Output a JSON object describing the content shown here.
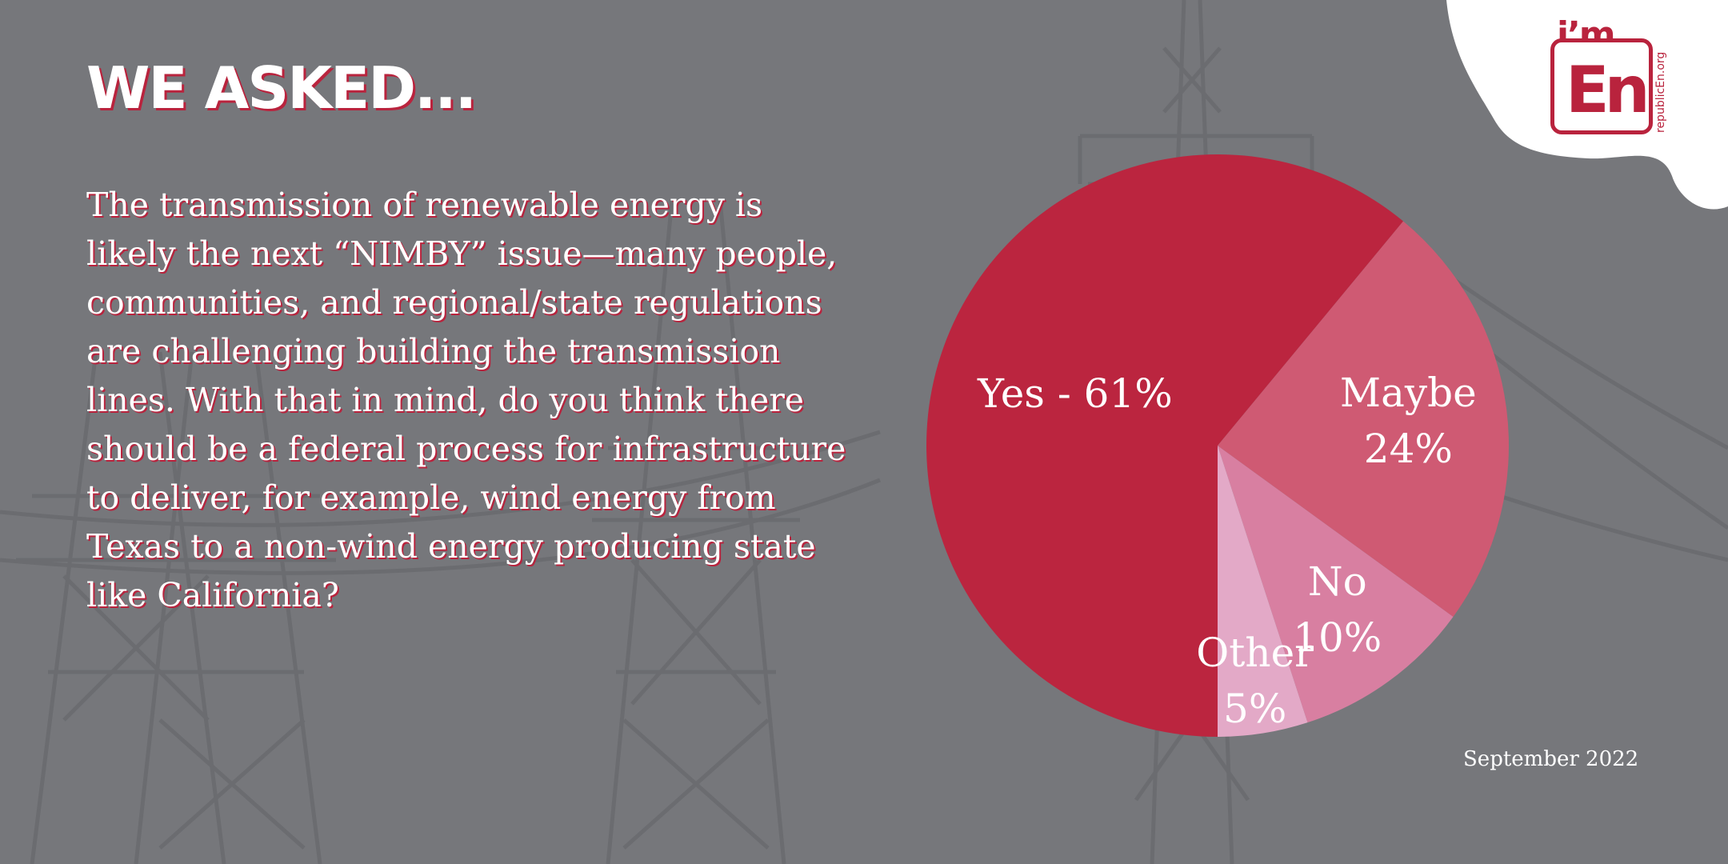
{
  "headline": "WE ASKED...",
  "question": "The transmission of renewable energy is likely the next “NIMBY” issue—many people, communities, and regional/state regulations are challenging building the transmission lines. With that in mind, do you think there should be a federal process for infrastructure to deliver, for example, wind energy from Texas to a non-wind energy producing state like California?",
  "date": "September 2022",
  "logo": {
    "im": "i’m",
    "en": "En",
    "url": "republicEn.org"
  },
  "colors": {
    "background": "#76777b",
    "brand_red": "#b9233d"
  },
  "chart_data": {
    "type": "pie",
    "slices": [
      {
        "name": "Yes",
        "value": 61,
        "label_lines": [
          "Yes - 61%"
        ],
        "color": "#bb253f"
      },
      {
        "name": "Maybe",
        "value": 24,
        "label_lines": [
          "Maybe",
          "24%"
        ],
        "color": "#cf5a73"
      },
      {
        "name": "No",
        "value": 10,
        "label_lines": [
          "No",
          "10%"
        ],
        "color": "#d87fa1"
      },
      {
        "name": "Other",
        "value": 5,
        "label_lines": [
          "Other",
          "5%"
        ],
        "color": "#e3a9c7"
      }
    ]
  }
}
